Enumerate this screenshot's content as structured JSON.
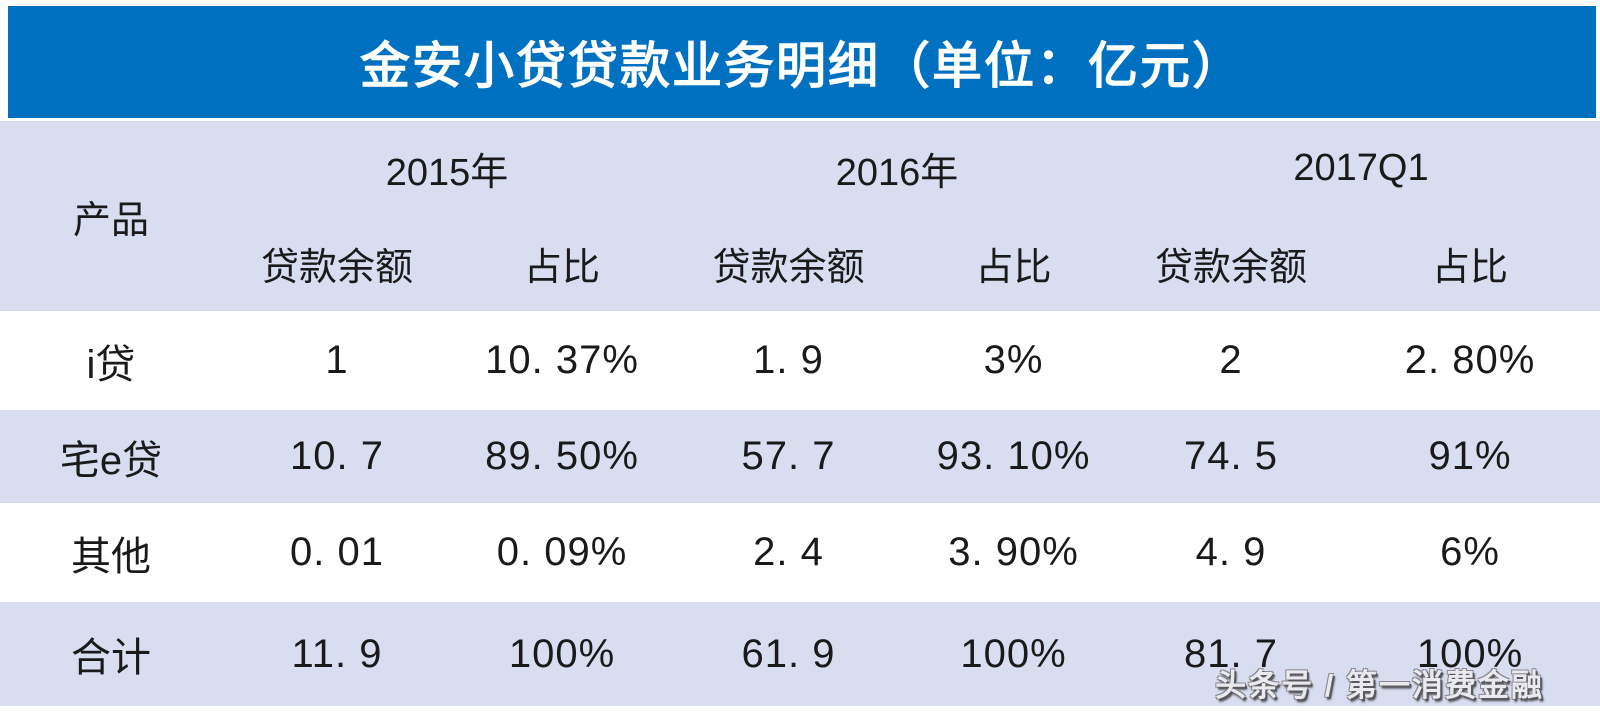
{
  "title": "金安小贷贷款业务明细（单位：亿元）",
  "watermark": "头条号 / 第一消费金融",
  "colors": {
    "banner_blue": "#0070C0",
    "band_lavender": "#D9DDF0",
    "row_white": "#FFFFFF",
    "title_text": "#FFFFFF",
    "body_text": "#1A1A1A"
  },
  "table": {
    "product_header": "产品",
    "year_groups": [
      {
        "label": "2015年"
      },
      {
        "label": "2016年"
      },
      {
        "label": "2017Q1"
      }
    ],
    "sub_headers": [
      "贷款余额",
      "占比",
      "贷款余额",
      "占比",
      "贷款余额",
      "占比"
    ],
    "rows": [
      {
        "product": "i贷",
        "values": [
          "1",
          "10. 37%",
          "1. 9",
          "3%",
          "2",
          "2. 80%"
        ]
      },
      {
        "product": "宅e贷",
        "values": [
          "10. 7",
          "89. 50%",
          "57. 7",
          "93. 10%",
          "74. 5",
          "91%"
        ]
      },
      {
        "product": "其他",
        "values": [
          "0. 01",
          "0. 09%",
          "2. 4",
          "3. 90%",
          "4. 9",
          "6%"
        ]
      },
      {
        "product": "合计",
        "values": [
          "11. 9",
          "100%",
          "61. 9",
          "100%",
          "81. 7",
          "100%"
        ]
      }
    ]
  },
  "chart_data": {
    "type": "table",
    "title": "金安小贷贷款业务明细（单位：亿元）",
    "unit": "亿元",
    "columns": [
      "产品",
      "2015年 贷款余额",
      "2015年 占比",
      "2016年 贷款余额",
      "2016年 占比",
      "2017Q1 贷款余额",
      "2017Q1 占比"
    ],
    "rows": [
      [
        "i贷",
        1,
        "10.37%",
        1.9,
        "3%",
        2,
        "2.80%"
      ],
      [
        "宅e贷",
        10.7,
        "89.50%",
        57.7,
        "93.10%",
        74.5,
        "91%"
      ],
      [
        "其他",
        0.01,
        "0.09%",
        2.4,
        "3.90%",
        4.9,
        "6%"
      ],
      [
        "合计",
        11.9,
        "100%",
        61.9,
        "100%",
        81.7,
        "100%"
      ]
    ]
  }
}
